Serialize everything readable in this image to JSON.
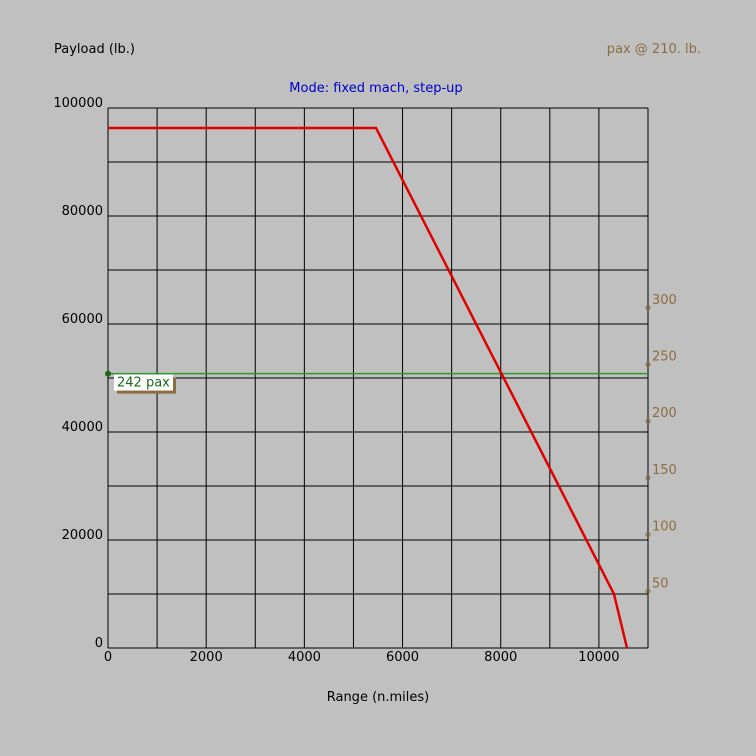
{
  "chart_data": {
    "type": "line",
    "title": "Mode: fixed mach, step-up",
    "y_label": "Payload (lb.)",
    "y2_label": "pax @ 210. lb.",
    "x_label": "Range (n.miles)",
    "xlim": [
      0,
      11000
    ],
    "ylim": [
      0,
      100000
    ],
    "y2lim": [
      0,
      476.19
    ],
    "xticks": [
      0,
      2000,
      4000,
      6000,
      8000,
      10000
    ],
    "yticks": [
      0,
      20000,
      40000,
      60000,
      80000,
      100000
    ],
    "y2ticks": [
      50,
      100,
      150,
      200,
      250,
      300
    ],
    "xgrid": [
      0,
      1000,
      2000,
      3000,
      4000,
      5000,
      6000,
      7000,
      8000,
      9000,
      10000,
      11000
    ],
    "ygrid": [
      0,
      10000,
      20000,
      30000,
      40000,
      50000,
      60000,
      70000,
      80000,
      90000,
      100000
    ],
    "series": [
      {
        "color": "#e00000",
        "x": [
          0,
          5460,
          10307,
          10572
        ],
        "values": [
          96300,
          96300,
          10000,
          0
        ]
      }
    ],
    "reference": {
      "label": "242 pax",
      "value": 242,
      "axis": "y2",
      "color": "#2a9a2a"
    }
  }
}
